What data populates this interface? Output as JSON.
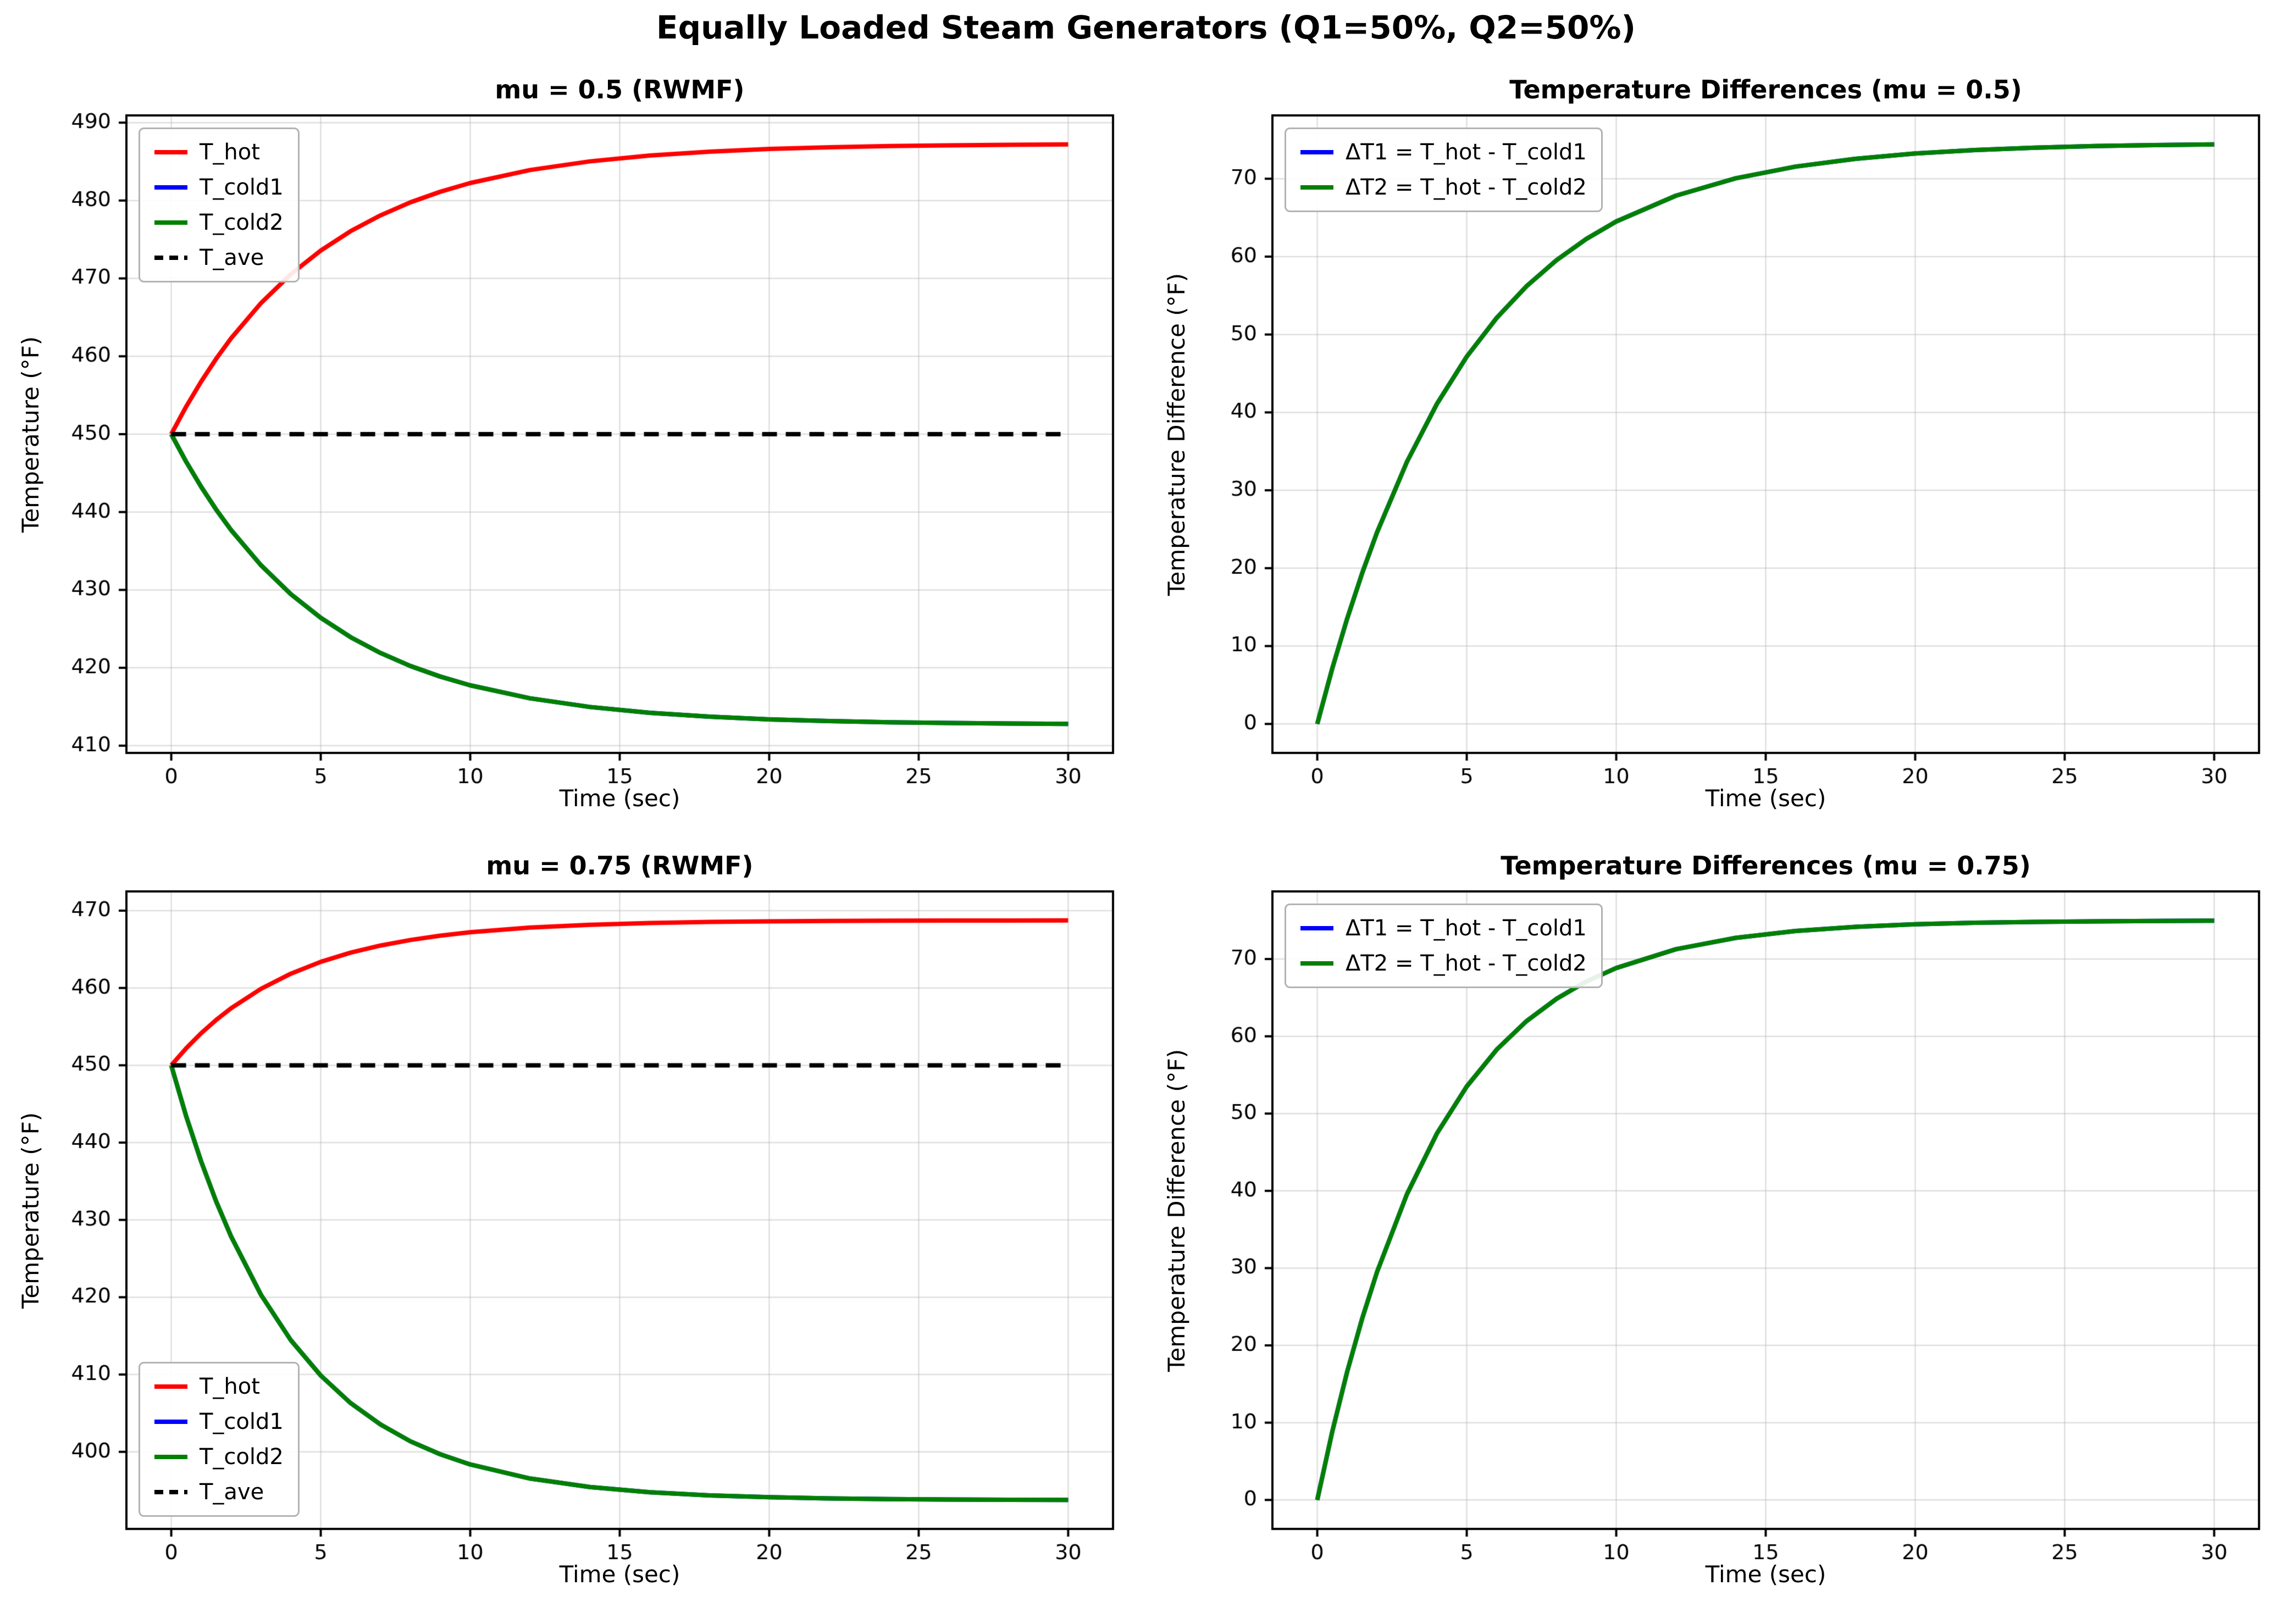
{
  "figure": {
    "suptitle": "Equally Loaded Steam Generators (Q1=50%, Q2=50%)"
  },
  "chart_data": [
    {
      "type": "line",
      "title": "mu = 0.5 (RWMF)",
      "xlabel": "Time (sec)",
      "ylabel": "Temperature (°F)",
      "xlim": [
        -1.5,
        31.5
      ],
      "ylim": [
        409.07,
        490.93
      ],
      "xticks": [
        0,
        5,
        10,
        15,
        20,
        25,
        30
      ],
      "yticks": [
        410,
        420,
        430,
        440,
        450,
        460,
        470,
        480,
        490
      ],
      "grid": true,
      "legend": {
        "position": "top-left",
        "entries": [
          {
            "label": "T_hot",
            "color": "#ff0000",
            "dash": false
          },
          {
            "label": "T_cold1",
            "color": "#0000ff",
            "dash": false
          },
          {
            "label": "T_cold2",
            "color": "#008000",
            "dash": false
          },
          {
            "label": "T_ave",
            "color": "#000000",
            "dash": true
          }
        ]
      },
      "x": [
        0,
        0.5,
        1,
        1.5,
        2,
        3,
        4,
        5,
        6,
        7,
        8,
        9,
        10,
        12,
        14,
        16,
        18,
        20,
        22,
        24,
        26,
        28,
        30
      ],
      "series": [
        {
          "name": "T_hot",
          "color": "#ff0000",
          "width": 8,
          "values": [
            450,
            453.55,
            456.76,
            459.67,
            462.3,
            466.83,
            470.54,
            473.58,
            476.07,
            478.1,
            479.77,
            481.13,
            482.25,
            483.92,
            485.03,
            485.78,
            486.28,
            486.62,
            486.84,
            486.99,
            487.09,
            487.16,
            487.21
          ]
        },
        {
          "name": "T_cold1",
          "color": "#0000ff",
          "width": 8,
          "values": [
            450,
            446.45,
            443.24,
            440.33,
            437.7,
            433.17,
            429.46,
            426.42,
            423.93,
            421.9,
            420.23,
            418.87,
            417.75,
            416.08,
            414.97,
            414.22,
            413.72,
            413.38,
            413.16,
            413.01,
            412.91,
            412.84,
            412.79
          ]
        },
        {
          "name": "T_cold2",
          "color": "#008000",
          "width": 8,
          "values": [
            450,
            446.45,
            443.24,
            440.33,
            437.7,
            433.17,
            429.46,
            426.42,
            423.93,
            421.9,
            420.23,
            418.87,
            417.75,
            416.08,
            414.97,
            414.22,
            413.72,
            413.38,
            413.16,
            413.01,
            412.91,
            412.84,
            412.79
          ]
        },
        {
          "name": "T_ave",
          "color": "#000000",
          "width": 8,
          "dash": [
            27,
            16
          ],
          "x": [
            0,
            30
          ],
          "values": [
            450,
            450
          ]
        }
      ]
    },
    {
      "type": "line",
      "title": "Temperature Differences (mu = 0.5)",
      "xlabel": "Time (sec)",
      "ylabel": "Temperature Difference (°F)",
      "xlim": [
        -1.5,
        31.5
      ],
      "ylim": [
        -3.72,
        78.13
      ],
      "xticks": [
        0,
        5,
        10,
        15,
        20,
        25,
        30
      ],
      "yticks": [
        0,
        10,
        20,
        30,
        40,
        50,
        60,
        70
      ],
      "grid": true,
      "legend": {
        "position": "top-left",
        "entries": [
          {
            "label": "ΔT1 = T_hot - T_cold1",
            "color": "#0000ff",
            "dash": false
          },
          {
            "label": "ΔT2 = T_hot - T_cold2",
            "color": "#008000",
            "dash": false
          }
        ]
      },
      "x": [
        0,
        0.5,
        1,
        1.5,
        2,
        3,
        4,
        5,
        6,
        7,
        8,
        9,
        10,
        12,
        14,
        16,
        18,
        20,
        22,
        24,
        26,
        28,
        30
      ],
      "series": [
        {
          "name": "ΔT1",
          "color": "#0000ff",
          "width": 8,
          "values": [
            0,
            7.1,
            13.52,
            19.34,
            24.6,
            33.66,
            41.08,
            47.16,
            52.13,
            56.2,
            59.54,
            62.27,
            64.51,
            67.83,
            70.06,
            71.56,
            72.56,
            73.24,
            73.68,
            73.99,
            74.19,
            74.32,
            74.41
          ]
        },
        {
          "name": "ΔT2",
          "color": "#008000",
          "width": 8,
          "values": [
            0,
            7.1,
            13.52,
            19.34,
            24.6,
            33.66,
            41.08,
            47.16,
            52.13,
            56.2,
            59.54,
            62.27,
            64.51,
            67.83,
            70.06,
            71.56,
            72.56,
            73.24,
            73.68,
            73.99,
            74.19,
            74.32,
            74.41
          ]
        }
      ]
    },
    {
      "type": "line",
      "title": "mu = 0.75 (RWMF)",
      "xlabel": "Time (sec)",
      "ylabel": "Temperature (°F)",
      "xlim": [
        -1.5,
        31.5
      ],
      "ylim": [
        390.03,
        472.49
      ],
      "xticks": [
        0,
        5,
        10,
        15,
        20,
        25,
        30
      ],
      "yticks": [
        400,
        410,
        420,
        430,
        440,
        450,
        460,
        470
      ],
      "grid": true,
      "legend": {
        "position": "bottom-left",
        "entries": [
          {
            "label": "T_hot",
            "color": "#ff0000",
            "dash": false
          },
          {
            "label": "T_cold1",
            "color": "#0000ff",
            "dash": false
          },
          {
            "label": "T_cold2",
            "color": "#008000",
            "dash": false
          },
          {
            "label": "T_ave",
            "color": "#000000",
            "dash": true
          }
        ]
      },
      "x": [
        0,
        0.5,
        1,
        1.5,
        2,
        3,
        4,
        5,
        6,
        7,
        8,
        9,
        10,
        12,
        14,
        16,
        18,
        20,
        22,
        24,
        26,
        28,
        30
      ],
      "series": [
        {
          "name": "T_hot",
          "color": "#ff0000",
          "width": 8,
          "values": [
            450,
            452.2,
            454.15,
            455.86,
            457.38,
            459.89,
            461.85,
            463.38,
            464.57,
            465.49,
            466.21,
            466.77,
            467.21,
            467.82,
            468.18,
            468.41,
            468.54,
            468.62,
            468.67,
            468.7,
            468.72,
            468.73,
            468.74
          ]
        },
        {
          "name": "T_cold1",
          "color": "#0000ff",
          "width": 8,
          "values": [
            450,
            443.39,
            437.56,
            432.41,
            427.87,
            420.32,
            414.44,
            409.87,
            406.3,
            403.53,
            401.36,
            399.68,
            398.37,
            396.55,
            395.45,
            394.78,
            394.37,
            394.13,
            393.98,
            393.89,
            393.83,
            393.8,
            393.78
          ]
        },
        {
          "name": "T_cold2",
          "color": "#008000",
          "width": 8,
          "values": [
            450,
            443.39,
            437.56,
            432.41,
            427.87,
            420.32,
            414.44,
            409.87,
            406.3,
            403.53,
            401.36,
            399.68,
            398.37,
            396.55,
            395.45,
            394.78,
            394.37,
            394.13,
            393.98,
            393.89,
            393.83,
            393.8,
            393.78
          ]
        },
        {
          "name": "T_ave",
          "color": "#000000",
          "width": 8,
          "dash": [
            27,
            16
          ],
          "x": [
            0,
            30
          ],
          "values": [
            450,
            450
          ]
        }
      ]
    },
    {
      "type": "line",
      "title": "Temperature Differences (mu = 0.75)",
      "xlabel": "Time (sec)",
      "ylabel": "Temperature Difference (°F)",
      "xlim": [
        -1.5,
        31.5
      ],
      "ylim": [
        -3.75,
        78.75
      ],
      "xticks": [
        0,
        5,
        10,
        15,
        20,
        25,
        30
      ],
      "yticks": [
        0,
        10,
        20,
        30,
        40,
        50,
        60,
        70
      ],
      "grid": true,
      "legend": {
        "position": "top-left",
        "entries": [
          {
            "label": "ΔT1 = T_hot - T_cold1",
            "color": "#0000ff",
            "dash": false
          },
          {
            "label": "ΔT2 = T_hot - T_cold2",
            "color": "#008000",
            "dash": false
          }
        ]
      },
      "x": [
        0,
        0.5,
        1,
        1.5,
        2,
        3,
        4,
        5,
        6,
        7,
        8,
        9,
        10,
        12,
        14,
        16,
        18,
        20,
        22,
        24,
        26,
        28,
        30
      ],
      "series": [
        {
          "name": "ΔT1",
          "color": "#0000ff",
          "width": 8,
          "values": [
            0,
            8.81,
            16.59,
            23.45,
            29.51,
            39.57,
            47.41,
            53.51,
            58.27,
            61.97,
            64.85,
            67.1,
            68.84,
            71.27,
            72.74,
            73.63,
            74.17,
            74.5,
            74.69,
            74.81,
            74.88,
            74.93,
            74.96
          ]
        },
        {
          "name": "ΔT2",
          "color": "#008000",
          "width": 8,
          "values": [
            0,
            8.81,
            16.59,
            23.45,
            29.51,
            39.57,
            47.41,
            53.51,
            58.27,
            61.97,
            64.85,
            67.1,
            68.84,
            71.27,
            72.74,
            73.63,
            74.17,
            74.5,
            74.69,
            74.81,
            74.88,
            74.93,
            74.96
          ]
        }
      ]
    }
  ]
}
